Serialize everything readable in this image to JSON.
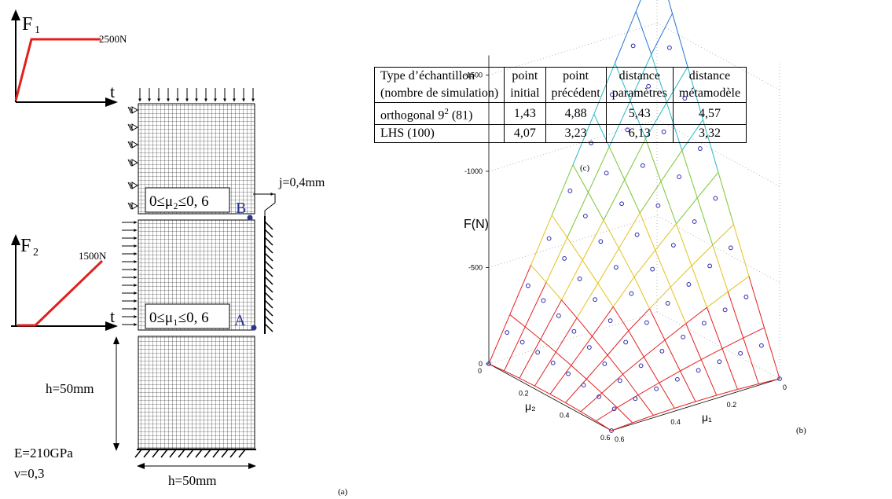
{
  "panel_a": {
    "f1_label": "F",
    "f1_sub": "1",
    "f1_value": "2500N",
    "f2_label": "F",
    "f2_sub": "2",
    "f2_value": "1500N",
    "t_label": "t",
    "mu2_label": "0≤μ₂≤0, 6",
    "mu1_label": "0≤μ₁≤0, 6",
    "point_b": "B",
    "point_a": "A",
    "gap_label": "j=0,4mm",
    "height_label": "h=50mm",
    "width_label": "h=50mm",
    "modulus": "E=210GPa",
    "poisson": "ν=0,3",
    "caption": "(a)"
  },
  "table": {
    "headers_row1": [
      "Type d’échantillon",
      "point",
      "point",
      "distance",
      "distance"
    ],
    "headers_row2": [
      "(nombre de simulation)",
      "initial",
      "précédent",
      "paramètres",
      "métamodèle"
    ],
    "rows": [
      {
        "type_base": "orthogonal 9",
        "type_sup": "2",
        "type_rest": " (81)",
        "values": [
          "1,43",
          "4,88",
          "5,43",
          "4,57"
        ]
      },
      {
        "type_base": "LHS (100)",
        "type_sup": "",
        "type_rest": "",
        "values": [
          "4,07",
          "3,23",
          "6,13",
          "3,32"
        ]
      }
    ],
    "caption": "(c)"
  },
  "chart_data": {
    "type": "surface3d",
    "zlabel": "F(N)",
    "xlabel": "μ₂",
    "ylabel": "μ₁",
    "zticks": [
      "-1500",
      "-1000",
      "-500",
      "0"
    ],
    "x_ticks": [
      "0",
      "0.2",
      "0.4",
      "0.6"
    ],
    "y_ticks": [
      "0",
      "0.2",
      "0.4",
      "0.6"
    ],
    "mu_range": [
      0,
      0.6
    ],
    "grid_steps": 8,
    "zlim": [
      0,
      -1700
    ],
    "caption": "(b)"
  }
}
